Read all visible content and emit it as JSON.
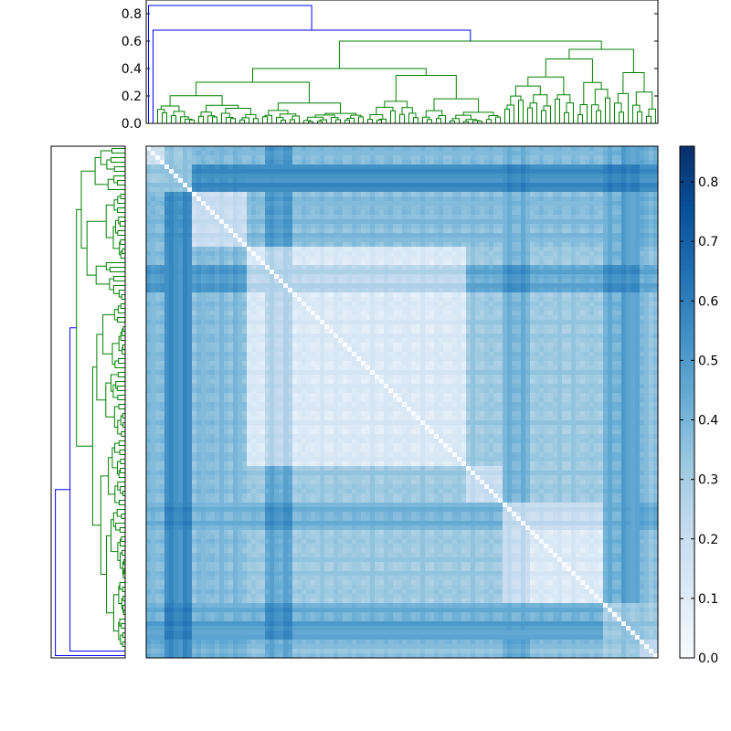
{
  "chart_data": [
    {
      "type": "dendrogram",
      "role": "top",
      "orientation": "top",
      "ylim": [
        0,
        0.9
      ],
      "yticks": [
        0.0,
        0.2,
        0.4,
        0.6,
        0.8
      ],
      "ytick_labels": [
        "0.0",
        "0.2",
        "0.4",
        "0.6",
        "0.8"
      ],
      "leaf_count": 112,
      "colors": {
        "above_threshold": "#0000ff",
        "cluster": "#008000"
      },
      "major_merges": [
        {
          "height": 0.86,
          "color": "#0000ff"
        },
        {
          "height": 0.68,
          "color": "#0000ff"
        },
        {
          "height": 0.6,
          "color": "#008000"
        },
        {
          "height": 0.47,
          "color": "#008000"
        },
        {
          "height": 0.4,
          "color": "#008000"
        },
        {
          "height": 0.35,
          "color": "#008000"
        },
        {
          "height": 0.3,
          "color": "#008000"
        },
        {
          "height": 0.26,
          "color": "#008000"
        }
      ]
    },
    {
      "type": "dendrogram",
      "role": "left",
      "orientation": "left",
      "leaf_count": 112,
      "colors": {
        "above_threshold": "#0000ff",
        "cluster": "#008000"
      }
    },
    {
      "type": "heatmap",
      "role": "distance-matrix",
      "size": [
        112,
        112
      ],
      "colormap": "Blues",
      "vmin": 0.0,
      "vmax": 0.86,
      "diagonal_value": 0.0,
      "blocks": [
        {
          "rows": [
            0,
            10
          ],
          "cols": [
            0,
            10
          ],
          "value": 0.08
        },
        {
          "rows": [
            10,
            22
          ],
          "cols": [
            10,
            22
          ],
          "value": 0.12
        },
        {
          "rows": [
            22,
            70
          ],
          "cols": [
            22,
            70
          ],
          "value": 0.1
        },
        {
          "rows": [
            70,
            78
          ],
          "cols": [
            70,
            78
          ],
          "value": 0.18
        },
        {
          "rows": [
            78,
            100
          ],
          "cols": [
            78,
            100
          ],
          "value": 0.1
        },
        {
          "rows": [
            100,
            112
          ],
          "cols": [
            100,
            112
          ],
          "value": 0.15
        }
      ],
      "background_value": 0.3
    },
    {
      "type": "colorbar",
      "colormap": "Blues",
      "ylim": [
        0.0,
        0.86
      ],
      "ticks": [
        0.0,
        0.1,
        0.2,
        0.3,
        0.4,
        0.5,
        0.6,
        0.7,
        0.8
      ],
      "tick_labels": [
        "0.0",
        "0.1",
        "0.2",
        "0.3",
        "0.4",
        "0.5",
        "0.6",
        "0.7",
        "0.8"
      ]
    }
  ]
}
